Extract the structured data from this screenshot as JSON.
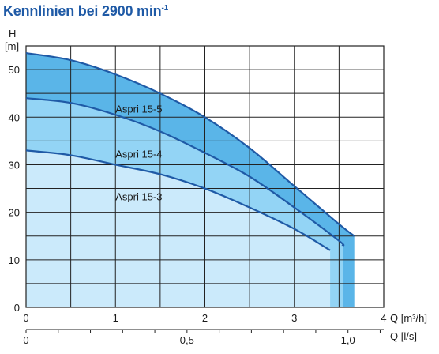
{
  "title": {
    "main": "Kennlinien bei 2900 min",
    "sup": "-1"
  },
  "chart_data": {
    "type": "line",
    "title": "Kennlinien bei 2900 min-1",
    "ylabel_top": "H",
    "ylabel_unit": "[m]",
    "xlabel_primary": "Q [m³/h]",
    "xlabel_secondary": "Q [l/s]",
    "xlim": [
      0,
      4
    ],
    "ylim": [
      0,
      55
    ],
    "x_ticks": [
      "0",
      "1",
      "2",
      "3",
      "4"
    ],
    "y_ticks": [
      "0",
      "10",
      "20",
      "30",
      "40",
      "50"
    ],
    "secondary_ticks": [
      {
        "label": "0",
        "value": 0
      },
      {
        "label": "0,5",
        "value": 0.5
      },
      {
        "label": "1,0",
        "value": 1.0
      }
    ],
    "grid": true,
    "series": [
      {
        "name": "Aspri 15-5",
        "points": [
          [
            0,
            53.5
          ],
          [
            0.5,
            52
          ],
          [
            1,
            49
          ],
          [
            1.5,
            45
          ],
          [
            2,
            40
          ],
          [
            2.5,
            33.5
          ],
          [
            3,
            25.5
          ],
          [
            3.5,
            17.5
          ],
          [
            3.67,
            15
          ]
        ],
        "color": "#5ab5e8"
      },
      {
        "name": "Aspri 15-4",
        "points": [
          [
            0,
            44
          ],
          [
            0.5,
            43
          ],
          [
            1,
            40.5
          ],
          [
            1.5,
            37
          ],
          [
            2,
            32.5
          ],
          [
            2.5,
            27.5
          ],
          [
            3,
            21
          ],
          [
            3.5,
            14
          ],
          [
            3.54,
            13
          ]
        ],
        "color": "#93d4f5"
      },
      {
        "name": "Aspri 15-3",
        "points": [
          [
            0,
            33
          ],
          [
            0.5,
            32
          ],
          [
            1,
            30
          ],
          [
            1.5,
            28
          ],
          [
            2,
            25
          ],
          [
            2.5,
            21
          ],
          [
            3,
            16.5
          ],
          [
            3.4,
            12
          ]
        ],
        "color": "#cbeafb"
      }
    ],
    "colors": {
      "line": "#1f5aa6",
      "grid": "#222222",
      "title": "#1f5aa6"
    }
  }
}
